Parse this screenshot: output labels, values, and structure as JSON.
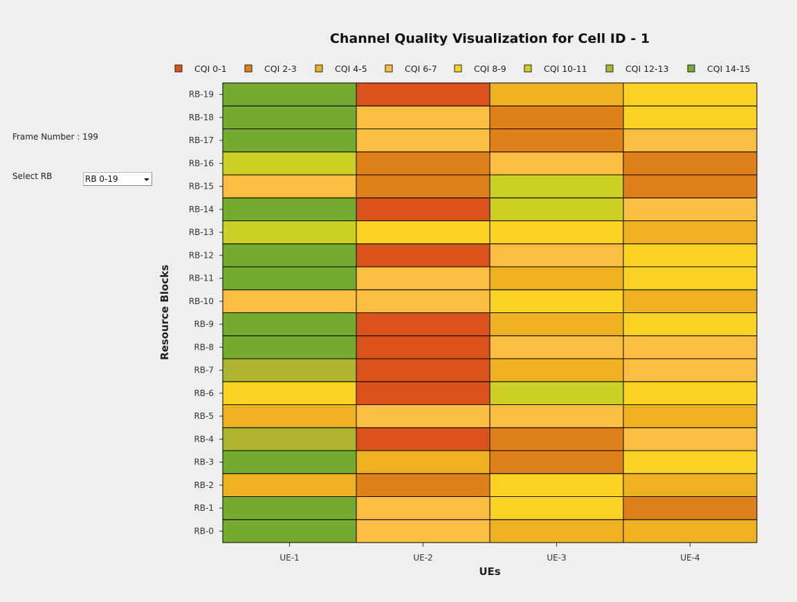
{
  "panel": {
    "frame_label": "Frame Number : 199",
    "select_label": "Select RB",
    "select_value": "RB 0-19"
  },
  "chart_data": {
    "type": "heatmap",
    "title": "Channel Quality Visualization for Cell ID - 1",
    "xlabel": "UEs",
    "ylabel": "Resource Blocks",
    "legend_position": "top",
    "legend": [
      {
        "label": "CQI 0-1",
        "color": "#D9531A"
      },
      {
        "label": "CQI 2-3",
        "color": "#E08018"
      },
      {
        "label": "CQI 4-5",
        "color": "#EDB121"
      },
      {
        "label": "CQI 6-7",
        "color": "#FBBE42"
      },
      {
        "label": "CQI 8-9",
        "color": "#FAD224"
      },
      {
        "label": "CQI 10-11",
        "color": "#CCD027"
      },
      {
        "label": "CQI 12-13",
        "color": "#ADB52F"
      },
      {
        "label": "CQI 14-15",
        "color": "#75AB31"
      }
    ],
    "x_categories": [
      "UE-1",
      "UE-2",
      "UE-3",
      "UE-4"
    ],
    "y_categories": [
      "RB-0",
      "RB-1",
      "RB-2",
      "RB-3",
      "RB-4",
      "RB-5",
      "RB-6",
      "RB-7",
      "RB-8",
      "RB-9",
      "RB-10",
      "RB-11",
      "RB-12",
      "RB-13",
      "RB-14",
      "RB-15",
      "RB-16",
      "RB-17",
      "RB-18",
      "RB-19"
    ],
    "cqi_level_index_note": "values are legend indices: 0=CQI 0-1 ... 7=CQI 14-15; rows ordered RB-0..RB-19, columns UE-1..UE-4",
    "values": [
      [
        7,
        3,
        2,
        2
      ],
      [
        7,
        3,
        4,
        1
      ],
      [
        2,
        1,
        4,
        2
      ],
      [
        7,
        2,
        1,
        4
      ],
      [
        6,
        0,
        1,
        3
      ],
      [
        2,
        3,
        3,
        2
      ],
      [
        4,
        0,
        5,
        4
      ],
      [
        6,
        0,
        2,
        3
      ],
      [
        7,
        0,
        3,
        3
      ],
      [
        7,
        0,
        2,
        4
      ],
      [
        3,
        3,
        4,
        2
      ],
      [
        7,
        3,
        2,
        4
      ],
      [
        7,
        0,
        3,
        4
      ],
      [
        5,
        4,
        4,
        2
      ],
      [
        7,
        0,
        5,
        3
      ],
      [
        3,
        1,
        5,
        1
      ],
      [
        5,
        1,
        3,
        1
      ],
      [
        7,
        3,
        1,
        3
      ],
      [
        7,
        3,
        1,
        4
      ],
      [
        7,
        0,
        2,
        4
      ]
    ]
  }
}
